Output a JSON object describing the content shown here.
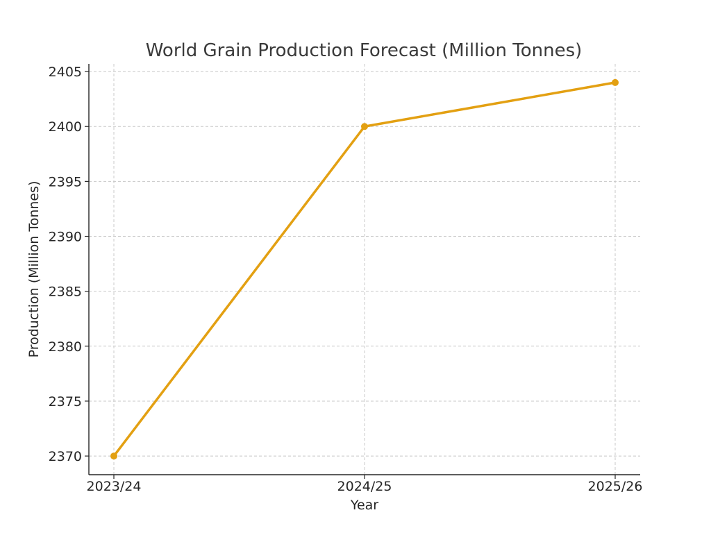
{
  "chart_data": {
    "type": "line",
    "title": "World Grain Production Forecast (Million Tonnes)",
    "xlabel": "Year",
    "ylabel": "Production (Million Tonnes)",
    "categories": [
      "2023/24",
      "2024/25",
      "2025/26"
    ],
    "series": [
      {
        "values": [
          2370,
          2400,
          2404
        ],
        "color": "#e3a012"
      }
    ],
    "yticks": [
      2370,
      2375,
      2380,
      2385,
      2390,
      2395,
      2400,
      2405
    ],
    "ylim": [
      2368.3,
      2405.7
    ],
    "grid": true,
    "legend": "none"
  }
}
